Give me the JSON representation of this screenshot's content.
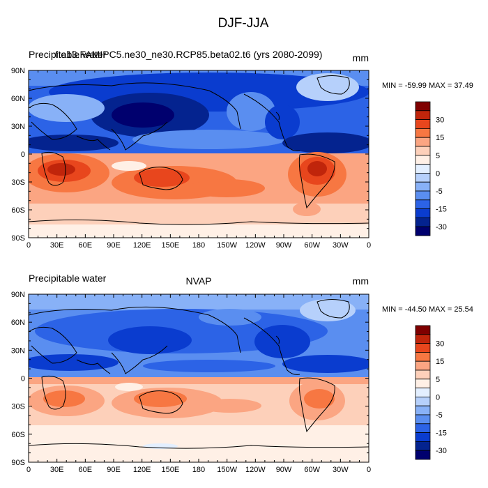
{
  "title": "DJF-JJA",
  "panels": [
    {
      "left_label": "Precipitable water",
      "center_label": "f.e13.FAMIPC5.ne30_ne30.RCP85.beta02.t6 (yrs 2080-2099)",
      "right_label": "mm",
      "stats": "MIN = -59.99 MAX =  37.49"
    },
    {
      "left_label": "Precipitable water",
      "center_label": "NVAP",
      "right_label": "mm",
      "stats": "MIN = -44.50 MAX =  25.54"
    }
  ],
  "x_ticks": [
    "0",
    "30E",
    "60E",
    "90E",
    "120E",
    "150E",
    "180",
    "150W",
    "120W",
    "90W",
    "60W",
    "30W",
    "0"
  ],
  "y_ticks": [
    "90N",
    "60N",
    "30N",
    "0",
    "30S",
    "60S",
    "90S"
  ],
  "colorbar": {
    "labels": [
      "30",
      "15",
      "5",
      "0",
      "-5",
      "-15",
      "-30"
    ],
    "colors": [
      "#7f0000",
      "#c0250b",
      "#e8461d",
      "#f77742",
      "#fba582",
      "#fdd0ba",
      "#fff0e6",
      "#e3efff",
      "#b6d0fb",
      "#88b1f7",
      "#5a8ef0",
      "#2c63e6",
      "#0a3ccf",
      "#04238f",
      "#00006e"
    ]
  }
}
